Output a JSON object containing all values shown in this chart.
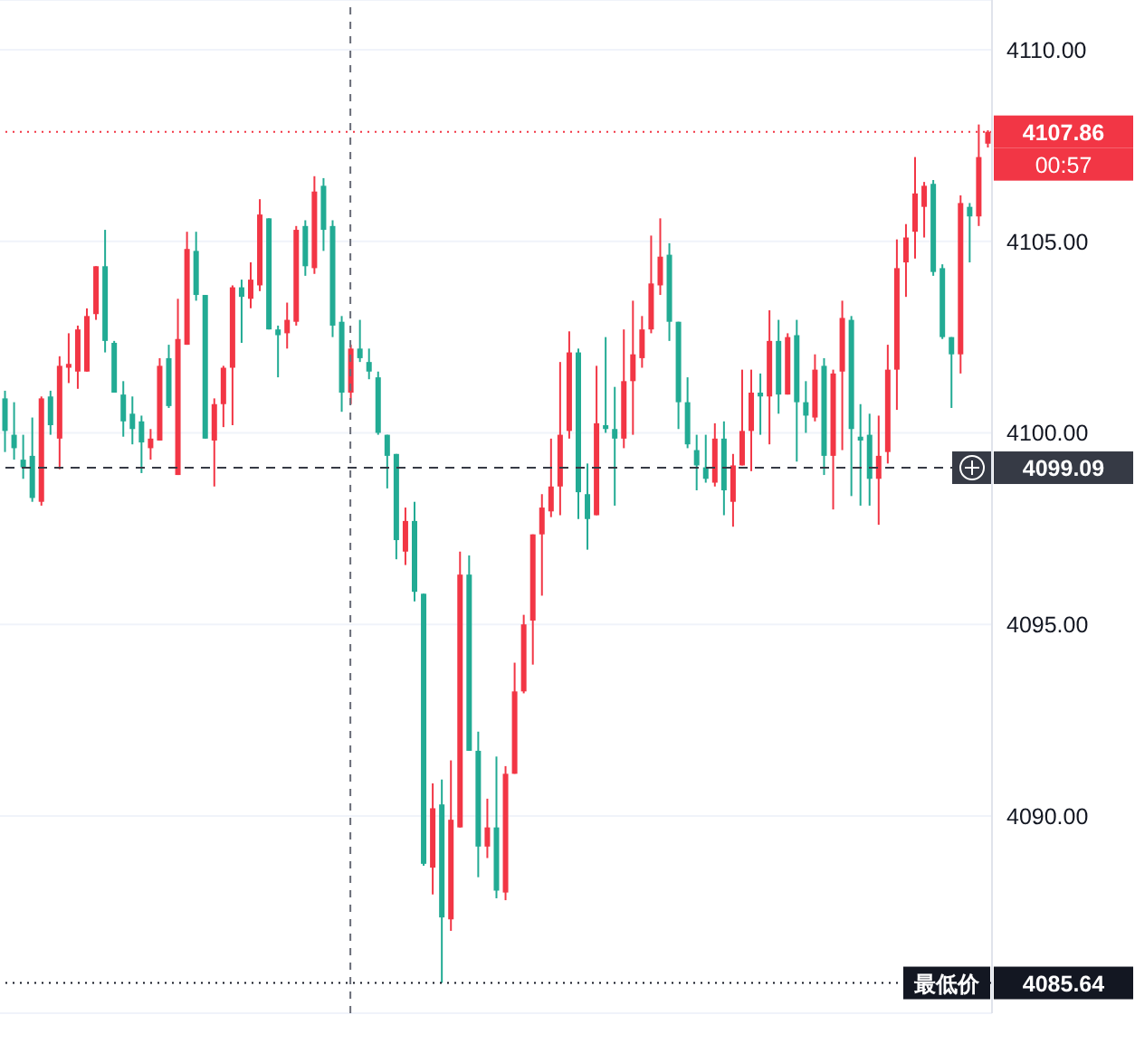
{
  "chart_data": {
    "type": "candlestick",
    "categories": [
      null,
      null,
      null,
      null,
      null,
      null,
      null,
      null,
      null,
      null,
      null,
      null,
      null,
      null,
      null,
      null,
      null,
      null,
      null,
      null,
      null,
      null,
      null,
      null,
      null,
      null,
      null,
      null,
      null,
      null,
      null,
      null,
      null,
      null,
      null,
      null,
      null,
      null,
      null,
      null,
      null,
      null,
      null,
      null,
      null,
      null,
      null,
      null,
      null,
      null,
      null,
      null,
      null,
      null,
      null,
      null,
      null,
      null,
      null,
      null,
      null,
      null,
      null,
      null,
      null,
      null,
      null,
      null,
      null,
      null,
      null,
      null,
      null,
      null,
      null,
      null,
      null,
      null,
      null,
      null,
      null,
      null,
      null,
      null,
      null,
      null,
      null,
      null,
      null,
      null,
      null,
      null,
      null,
      null,
      null,
      null,
      null,
      null,
      null,
      null,
      null,
      null,
      null,
      null,
      null,
      null,
      null,
      null,
      null
    ],
    "ohlc": [
      [
        4100.9,
        4101.1,
        4099.5,
        4100.05
      ],
      [
        4099.95,
        4100.8,
        4099.3,
        4099.6
      ],
      [
        4099.3,
        4099.95,
        4098.8,
        4099.1
      ],
      [
        4099.4,
        4100.4,
        4098.2,
        4098.3
      ],
      [
        4098.2,
        4100.95,
        4098.1,
        4100.9
      ],
      [
        4100.95,
        4101.1,
        4099.95,
        4100.2
      ],
      [
        4099.85,
        4102.0,
        4099.05,
        4101.75
      ],
      [
        4101.7,
        4102.6,
        4101.3,
        4101.8
      ],
      [
        4101.6,
        4102.8,
        4101.15,
        4102.7
      ],
      [
        4101.6,
        4103.25,
        4101.6,
        4103.05
      ],
      [
        4103.1,
        4104.35,
        4102.95,
        4104.35
      ],
      [
        4104.35,
        4105.3,
        4102.1,
        4102.4
      ],
      [
        4102.35,
        4102.4,
        4101.05,
        4101.05
      ],
      [
        4101.0,
        4101.35,
        4099.9,
        4100.3
      ],
      [
        4100.5,
        4100.95,
        4099.7,
        4100.1
      ],
      [
        4100.3,
        4100.45,
        4098.95,
        4099.75
      ],
      [
        4099.6,
        4100.1,
        4099.3,
        4099.85
      ],
      [
        4099.8,
        4101.95,
        4099.8,
        4101.75
      ],
      [
        4101.95,
        4102.3,
        4100.65,
        4100.7
      ],
      [
        4098.9,
        4103.5,
        4098.9,
        4102.45
      ],
      [
        4102.3,
        4105.25,
        4102.3,
        4104.8
      ],
      [
        4104.75,
        4105.25,
        4103.45,
        4103.6
      ],
      [
        4103.6,
        4103.6,
        4099.85,
        4099.85
      ],
      [
        4099.8,
        4100.9,
        4098.6,
        4100.75
      ],
      [
        4100.75,
        4101.75,
        4100.15,
        4101.7
      ],
      [
        4101.7,
        4103.85,
        4100.2,
        4103.8
      ],
      [
        4103.8,
        4104.0,
        4102.35,
        4103.55
      ],
      [
        4103.5,
        4104.45,
        4103.25,
        4104.0
      ],
      [
        4103.85,
        4106.1,
        4103.7,
        4105.7
      ],
      [
        4105.6,
        4105.6,
        4102.7,
        4102.7
      ],
      [
        4102.7,
        4102.8,
        4101.45,
        4102.55
      ],
      [
        4102.6,
        4103.4,
        4102.2,
        4102.95
      ],
      [
        4102.9,
        4105.4,
        4102.8,
        4105.3
      ],
      [
        4105.4,
        4105.55,
        4104.1,
        4104.35
      ],
      [
        4104.3,
        4106.7,
        4104.15,
        4106.3
      ],
      [
        4106.45,
        4106.65,
        4104.75,
        4105.3
      ],
      [
        4105.4,
        4105.55,
        4102.5,
        4102.8
      ],
      [
        4102.9,
        4103.05,
        4100.55,
        4101.05
      ],
      [
        4101.05,
        4102.3,
        4100.75,
        4102.2
      ],
      [
        4102.2,
        4102.95,
        4101.85,
        4101.95
      ],
      [
        4101.85,
        4102.2,
        4101.4,
        4101.6
      ],
      [
        4101.45,
        4101.6,
        4099.95,
        4100.0
      ],
      [
        4099.95,
        4099.95,
        4098.55,
        4099.4
      ],
      [
        4099.45,
        4099.45,
        4096.7,
        4097.2
      ],
      [
        4096.9,
        4098.05,
        4096.55,
        4097.7
      ],
      [
        4097.7,
        4098.2,
        4095.6,
        4095.85
      ],
      [
        4095.8,
        4095.8,
        4088.7,
        4088.75
      ],
      [
        4088.65,
        4090.85,
        4087.95,
        4090.2
      ],
      [
        4090.3,
        4090.95,
        4085.64,
        4087.35
      ],
      [
        4087.3,
        4091.45,
        4087.0,
        4089.9
      ],
      [
        4089.7,
        4096.9,
        4089.7,
        4096.3
      ],
      [
        4096.3,
        4096.8,
        4091.7,
        4091.7
      ],
      [
        4091.7,
        4092.2,
        4088.4,
        4089.2
      ],
      [
        4089.2,
        4090.45,
        4088.9,
        4089.7
      ],
      [
        4089.7,
        4091.55,
        4087.85,
        4088.05
      ],
      [
        4088.0,
        4091.3,
        4087.8,
        4091.1
      ],
      [
        4091.1,
        4094.0,
        4091.1,
        4093.25
      ],
      [
        4093.25,
        4095.25,
        4093.2,
        4095.0
      ],
      [
        4095.1,
        4097.35,
        4093.95,
        4097.35
      ],
      [
        4097.35,
        4098.4,
        4095.75,
        4098.05
      ],
      [
        4097.95,
        4099.85,
        4097.8,
        4098.6
      ],
      [
        4098.6,
        4101.85,
        4097.85,
        4099.95
      ],
      [
        4100.05,
        4102.65,
        4099.85,
        4102.1
      ],
      [
        4102.1,
        4102.2,
        4097.75,
        4098.45
      ],
      [
        4098.4,
        4099.2,
        4096.95,
        4097.75
      ],
      [
        4097.85,
        4101.75,
        4097.85,
        4100.25
      ],
      [
        4100.2,
        4102.5,
        4100.0,
        4100.1
      ],
      [
        4100.1,
        4101.2,
        4098.1,
        4099.85
      ],
      [
        4099.85,
        4102.7,
        4099.6,
        4101.35
      ],
      [
        4101.35,
        4103.45,
        4099.95,
        4102.05
      ],
      [
        4101.95,
        4103.05,
        4101.7,
        4102.7
      ],
      [
        4102.7,
        4105.15,
        4102.6,
        4103.9
      ],
      [
        4103.85,
        4105.6,
        4103.6,
        4104.6
      ],
      [
        4104.65,
        4104.95,
        4102.4,
        4102.9
      ],
      [
        4102.9,
        4102.9,
        4100.1,
        4100.8
      ],
      [
        4100.8,
        4101.45,
        4099.6,
        4099.7
      ],
      [
        4099.55,
        4099.95,
        4098.5,
        4099.15
      ],
      [
        4099.1,
        4099.95,
        4098.7,
        4098.8
      ],
      [
        4098.7,
        4100.25,
        4098.6,
        4099.85
      ],
      [
        4099.85,
        4100.3,
        4097.85,
        4098.5
      ],
      [
        4098.2,
        4099.45,
        4097.55,
        4099.15
      ],
      [
        4099.15,
        4101.65,
        4099.15,
        4100.05
      ],
      [
        4100.05,
        4101.65,
        4099.0,
        4101.05
      ],
      [
        4101.05,
        4101.55,
        4099.95,
        4100.95
      ],
      [
        4100.95,
        4103.2,
        4099.7,
        4102.4
      ],
      [
        4102.4,
        4102.95,
        4100.5,
        4101.0
      ],
      [
        4101.0,
        4102.6,
        4101.0,
        4102.5
      ],
      [
        4102.55,
        4102.95,
        4099.25,
        4100.8
      ],
      [
        4100.8,
        4101.35,
        4100.0,
        4100.45
      ],
      [
        4100.4,
        4102.05,
        4100.3,
        4101.65
      ],
      [
        4101.75,
        4101.95,
        4098.9,
        4099.4
      ],
      [
        4099.4,
        4101.65,
        4098.0,
        4101.55
      ],
      [
        4101.6,
        4103.45,
        4099.55,
        4103.0
      ],
      [
        4102.95,
        4103.05,
        4098.35,
        4100.1
      ],
      [
        4099.9,
        4100.75,
        4098.1,
        4099.8
      ],
      [
        4099.95,
        4100.5,
        4098.1,
        4098.8
      ],
      [
        4098.8,
        4100.45,
        4097.6,
        4099.4
      ],
      [
        4099.5,
        4102.3,
        4099.2,
        4101.65
      ],
      [
        4101.65,
        4105.05,
        4100.6,
        4104.3
      ],
      [
        4104.45,
        4105.45,
        4103.55,
        4105.1
      ],
      [
        4105.25,
        4107.2,
        4104.55,
        4106.25
      ],
      [
        4105.9,
        4106.55,
        4105.1,
        4106.45
      ],
      [
        4106.5,
        4106.6,
        4104.1,
        4104.2
      ],
      [
        4104.3,
        4104.4,
        4102.45,
        4102.5
      ],
      [
        4102.5,
        4102.5,
        4100.65,
        4102.05
      ],
      [
        4102.05,
        4106.2,
        4101.55,
        4106.0
      ],
      [
        4105.9,
        4106.0,
        4104.45,
        4105.65
      ],
      [
        4105.65,
        4108.05,
        4105.4,
        4107.2
      ],
      [
        4107.55,
        4107.9,
        4107.45,
        4107.86
      ]
    ],
    "colors": [
      "#22ab94",
      "#22ab94",
      "#22ab94",
      "#22ab94",
      "#f23645",
      "#22ab94",
      "#f23645",
      "#f23645",
      "#f23645",
      "#f23645",
      "#f23645",
      "#22ab94",
      "#22ab94",
      "#22ab94",
      "#22ab94",
      "#22ab94",
      "#f23645",
      "#f23645",
      "#22ab94",
      "#f23645",
      "#f23645",
      "#22ab94",
      "#22ab94",
      "#f23645",
      "#f23645",
      "#f23645",
      "#22ab94",
      "#f23645",
      "#f23645",
      "#22ab94",
      "#22ab94",
      "#f23645",
      "#f23645",
      "#22ab94",
      "#f23645",
      "#22ab94",
      "#22ab94",
      "#22ab94",
      "#f23645",
      "#22ab94",
      "#22ab94",
      "#22ab94",
      "#22ab94",
      "#22ab94",
      "#f23645",
      "#22ab94",
      "#22ab94",
      "#f23645",
      "#22ab94",
      "#f23645",
      "#f23645",
      "#22ab94",
      "#22ab94",
      "#f23645",
      "#22ab94",
      "#f23645",
      "#f23645",
      "#f23645",
      "#f23645",
      "#f23645",
      "#f23645",
      "#f23645",
      "#f23645",
      "#22ab94",
      "#22ab94",
      "#f23645",
      "#22ab94",
      "#22ab94",
      "#f23645",
      "#f23645",
      "#f23645",
      "#f23645",
      "#f23645",
      "#22ab94",
      "#22ab94",
      "#22ab94",
      "#22ab94",
      "#22ab94",
      "#f23645",
      "#22ab94",
      "#f23645",
      "#f23645",
      "#f23645",
      "#22ab94",
      "#f23645",
      "#22ab94",
      "#f23645",
      "#22ab94",
      "#22ab94",
      "#f23645",
      "#22ab94",
      "#f23645",
      "#f23645",
      "#22ab94",
      "#22ab94",
      "#22ab94",
      "#f23645",
      "#f23645",
      "#f23645",
      "#f23645",
      "#f23645",
      "#f23645",
      "#22ab94",
      "#22ab94",
      "#22ab94",
      "#f23645",
      "#22ab94",
      "#f23645",
      "#f23645"
    ],
    "ylim": [
      4084.85,
      4111.3
    ],
    "yticks": [
      {
        "value": 4090,
        "label": "4090.00"
      },
      {
        "value": 4095,
        "label": "4095.00"
      },
      {
        "value": 4100,
        "label": "4100.00"
      },
      {
        "value": 4105,
        "label": "4105.00"
      },
      {
        "value": 4110,
        "label": "4110.00"
      }
    ],
    "grid": "y",
    "tick_labels": "y",
    "ref_lines": [
      {
        "axis": "y",
        "value": 4107.86,
        "label": "4107.86",
        "color": "#f23645",
        "line_style": "dotted"
      },
      {
        "axis": "y",
        "value": 4099.09,
        "label": "4099.09",
        "color": "#363a45",
        "line_style": "dashed"
      },
      {
        "axis": "y",
        "value": 4085.64,
        "label": "4085.64",
        "color": "#131722",
        "line_style": "dotted"
      }
    ],
    "annotations": [
      "00:57",
      {
        "text": "最低价",
        "y": 4085.64
      }
    ]
  }
}
